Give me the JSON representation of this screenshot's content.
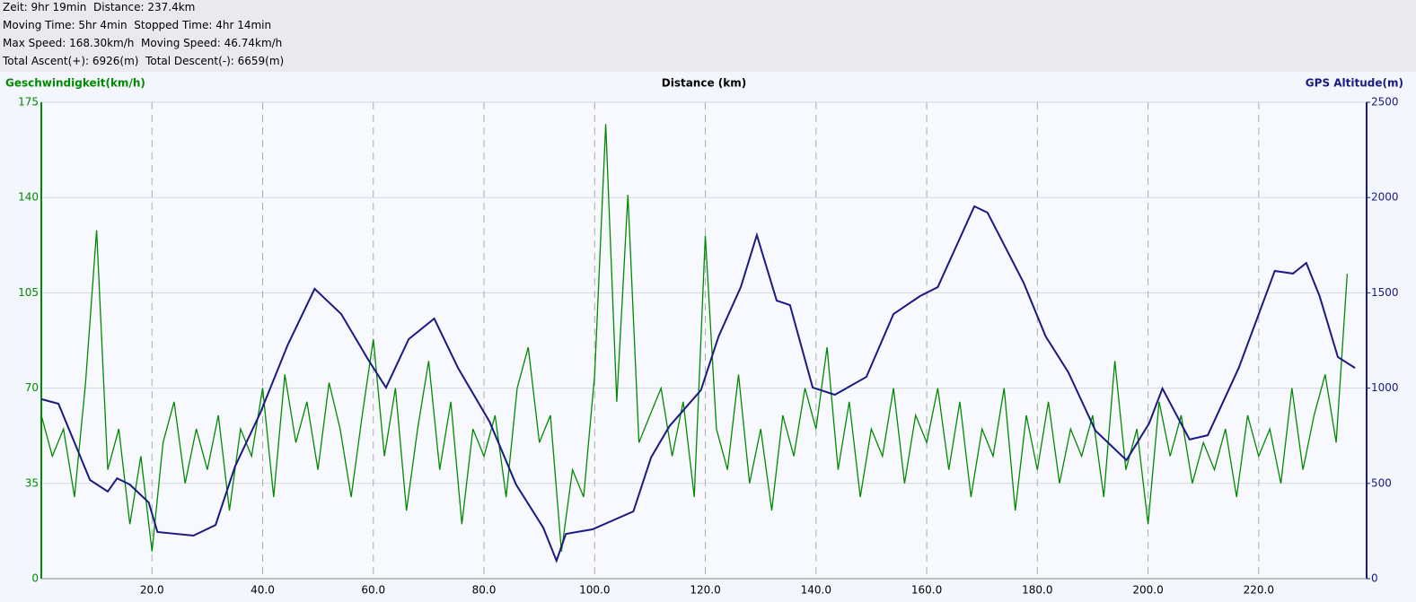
{
  "chart_data": {
    "type": "line",
    "header": [
      "Zeit: 9hr 19min  Distance: 237.4km",
      "Moving Time: 5hr 4min  Stopped Time: 4hr 14min",
      "Max Speed: 168.30km/h  Moving Speed: 46.74km/h",
      "Total Ascent(+): 6926(m)  Total Descent(-): 6659(m)"
    ],
    "x_label": "Distance (km)",
    "y_label": "Geschwindigkeit(km/h)",
    "y2_label": "GPS Altitude(m)",
    "xlim": [
      0,
      239.5
    ],
    "xticks": [
      {
        "value": 20,
        "label": "20.0"
      },
      {
        "value": 40,
        "label": "40.0"
      },
      {
        "value": 60,
        "label": "60.0"
      },
      {
        "value": 80,
        "label": "80.0"
      },
      {
        "value": 100,
        "label": "100.0"
      },
      {
        "value": 120,
        "label": "120.0"
      },
      {
        "value": 140,
        "label": "140.0"
      },
      {
        "value": 160,
        "label": "160.0"
      },
      {
        "value": 180,
        "label": "180.0"
      },
      {
        "value": 200,
        "label": "200.0"
      },
      {
        "value": 220,
        "label": "220.0"
      }
    ],
    "ylim": [
      0,
      175
    ],
    "yticks": [
      0,
      35,
      70,
      105,
      140,
      175
    ],
    "y2lim": [
      0,
      2500
    ],
    "y2ticks": [
      0,
      500,
      1000,
      1500,
      2000,
      2500
    ],
    "grid": true,
    "series": [
      {
        "name": "Geschwindigkeit",
        "color": "#008a00",
        "x": [
          0,
          2,
          4,
          6,
          8,
          10,
          12,
          14,
          16,
          18,
          20,
          22,
          24,
          26,
          28,
          30,
          32,
          34,
          36,
          38,
          40,
          42,
          44,
          46,
          48,
          50,
          52,
          54,
          56,
          58,
          60,
          62,
          64,
          66,
          68,
          70,
          72,
          74,
          76,
          78,
          80,
          82,
          84,
          86,
          88,
          90,
          92,
          94,
          96,
          98,
          100,
          102,
          104,
          106,
          108,
          110,
          112,
          114,
          116,
          118,
          120,
          122,
          124,
          126,
          128,
          130,
          132,
          134,
          136,
          138,
          140,
          142,
          144,
          146,
          148,
          150,
          152,
          154,
          156,
          158,
          160,
          162,
          164,
          166,
          168,
          170,
          172,
          174,
          176,
          178,
          180,
          182,
          184,
          186,
          188,
          190,
          192,
          194,
          196,
          198,
          200,
          202,
          204,
          206,
          208,
          210,
          212,
          214,
          216,
          218,
          220,
          222,
          224,
          226,
          228,
          230,
          232,
          234,
          236
        ],
        "values": [
          60,
          45,
          55,
          30,
          72,
          128,
          40,
          55,
          20,
          45,
          10,
          50,
          65,
          35,
          55,
          40,
          60,
          25,
          55,
          45,
          70,
          30,
          75,
          50,
          65,
          40,
          72,
          55,
          30,
          60,
          88,
          45,
          70,
          25,
          55,
          80,
          40,
          65,
          20,
          55,
          45,
          60,
          30,
          70,
          85,
          50,
          60,
          10,
          40,
          30,
          75,
          167,
          65,
          141,
          50,
          60,
          70,
          45,
          65,
          30,
          126,
          55,
          40,
          75,
          35,
          55,
          25,
          60,
          45,
          70,
          55,
          85,
          40,
          65,
          30,
          55,
          45,
          70,
          35,
          60,
          50,
          70,
          40,
          65,
          30,
          55,
          45,
          70,
          25,
          60,
          40,
          65,
          35,
          55,
          45,
          60,
          30,
          80,
          40,
          55,
          20,
          65,
          45,
          60,
          35,
          50,
          40,
          55,
          30,
          60,
          45,
          55,
          35,
          70,
          40,
          60,
          75,
          50,
          112
        ]
      },
      {
        "name": "GPS Altitude",
        "color": "#1a1a80",
        "axis": "y2",
        "x": [
          0,
          3.1,
          8.8,
          12,
          13.7,
          16,
          19.4,
          21,
          27.5,
          31.5,
          35,
          39.6,
          44.5,
          49.4,
          54.2,
          59,
          62.3,
          66.4,
          71,
          75.3,
          81,
          85.8,
          90.7,
          93.1,
          94.8,
          99.6,
          107,
          110.2,
          113.5,
          119.2,
          122.4,
          126.4,
          129.3,
          132.9,
          135.3,
          139.4,
          143.4,
          149.1,
          154,
          158.8,
          162,
          168.6,
          171,
          177.5,
          181.5,
          185.6,
          190.5,
          196.1,
          200.2,
          202.6,
          207.5,
          210.8,
          216.4,
          222.9,
          226.2,
          228.6,
          231,
          234.3,
          237.4
        ],
        "values": [
          942,
          918,
          518,
          457,
          527,
          494,
          400,
          245,
          226,
          282,
          588,
          871,
          1224,
          1521,
          1389,
          1153,
          1003,
          1257,
          1365,
          1106,
          824,
          494,
          268,
          94,
          235,
          259,
          353,
          636,
          800,
          989,
          1271,
          1530,
          1803,
          1459,
          1436,
          1003,
          965,
          1059,
          1389,
          1483,
          1530,
          1954,
          1921,
          1554,
          1271,
          1083,
          777,
          622,
          815,
          998,
          730,
          753,
          1106,
          1615,
          1601,
          1657,
          1483,
          1163,
          1106
        ]
      }
    ]
  }
}
